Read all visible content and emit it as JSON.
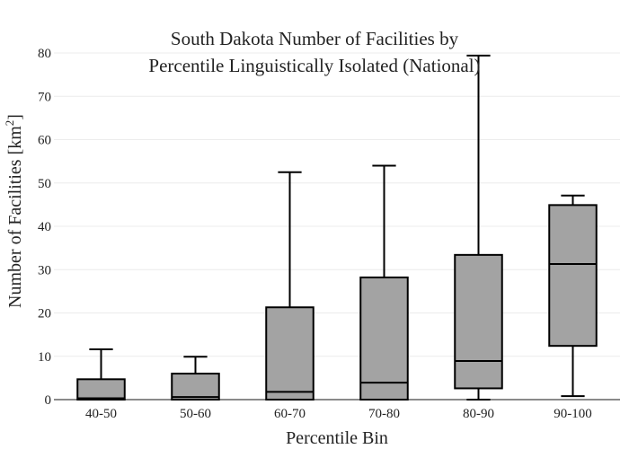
{
  "chart_data": {
    "type": "box",
    "title_lines": [
      "South Dakota Number of Facilities by",
      "Percentile Linguistically Isolated (National)"
    ],
    "xlabel": "Percentile Bin",
    "ylabel": "Number of Facilities  [km",
    "ylabel_sup": "2",
    "ylabel_close": "]",
    "ylim": [
      0,
      80
    ],
    "yticks": [
      0,
      10,
      20,
      30,
      40,
      50,
      60,
      70,
      80
    ],
    "grid": true,
    "categories": [
      "40-50",
      "50-60",
      "60-70",
      "70-80",
      "80-90",
      "90-100"
    ],
    "boxes": [
      {
        "category": "40-50",
        "min": 0,
        "q1": 0,
        "median": 0.3,
        "q3": 4.7,
        "max": 11.6
      },
      {
        "category": "50-60",
        "min": 0,
        "q1": 0,
        "median": 0.6,
        "q3": 6.0,
        "max": 9.9
      },
      {
        "category": "60-70",
        "min": 0,
        "q1": 0,
        "median": 1.8,
        "q3": 21.3,
        "max": 52.5
      },
      {
        "category": "70-80",
        "min": 0,
        "q1": 0,
        "median": 3.9,
        "q3": 28.2,
        "max": 54.0
      },
      {
        "category": "80-90",
        "min": 0,
        "q1": 2.6,
        "median": 8.9,
        "q3": 33.4,
        "max": 79.4
      },
      {
        "category": "90-100",
        "min": 0.8,
        "q1": 12.4,
        "median": 31.3,
        "q3": 44.9,
        "max": 47.1
      }
    ],
    "colors": {
      "box_fill": "#a3a3a3",
      "box_stroke": "#000000",
      "grid": "#ececec"
    }
  }
}
